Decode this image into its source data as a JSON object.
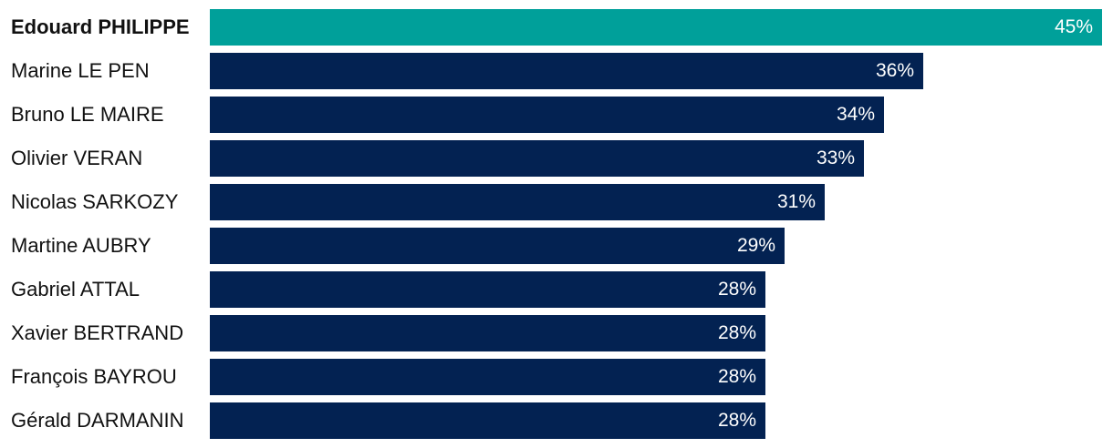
{
  "chart_data": {
    "type": "bar",
    "orientation": "horizontal",
    "categories": [
      "Edouard PHILIPPE",
      "Marine LE PEN",
      "Bruno LE MAIRE",
      "Olivier VERAN",
      "Nicolas SARKOZY",
      "Martine AUBRY",
      "Gabriel ATTAL",
      "Xavier BERTRAND",
      "François BAYROU",
      "Gérald DARMANIN"
    ],
    "values": [
      45,
      36,
      34,
      33,
      31,
      29,
      28,
      28,
      28,
      28
    ],
    "value_labels": [
      "45%",
      "36%",
      "34%",
      "33%",
      "31%",
      "29%",
      "28%",
      "28%",
      "28%",
      "28%"
    ],
    "highlight_index": 0,
    "xlim": [
      0,
      45
    ],
    "grid": false,
    "legend": "none",
    "title": "",
    "xlabel": "",
    "ylabel": ""
  },
  "colors": {
    "highlight": "#00a09a",
    "default": "#032252",
    "label_text": "#111111",
    "value_text": "#ffffff"
  }
}
